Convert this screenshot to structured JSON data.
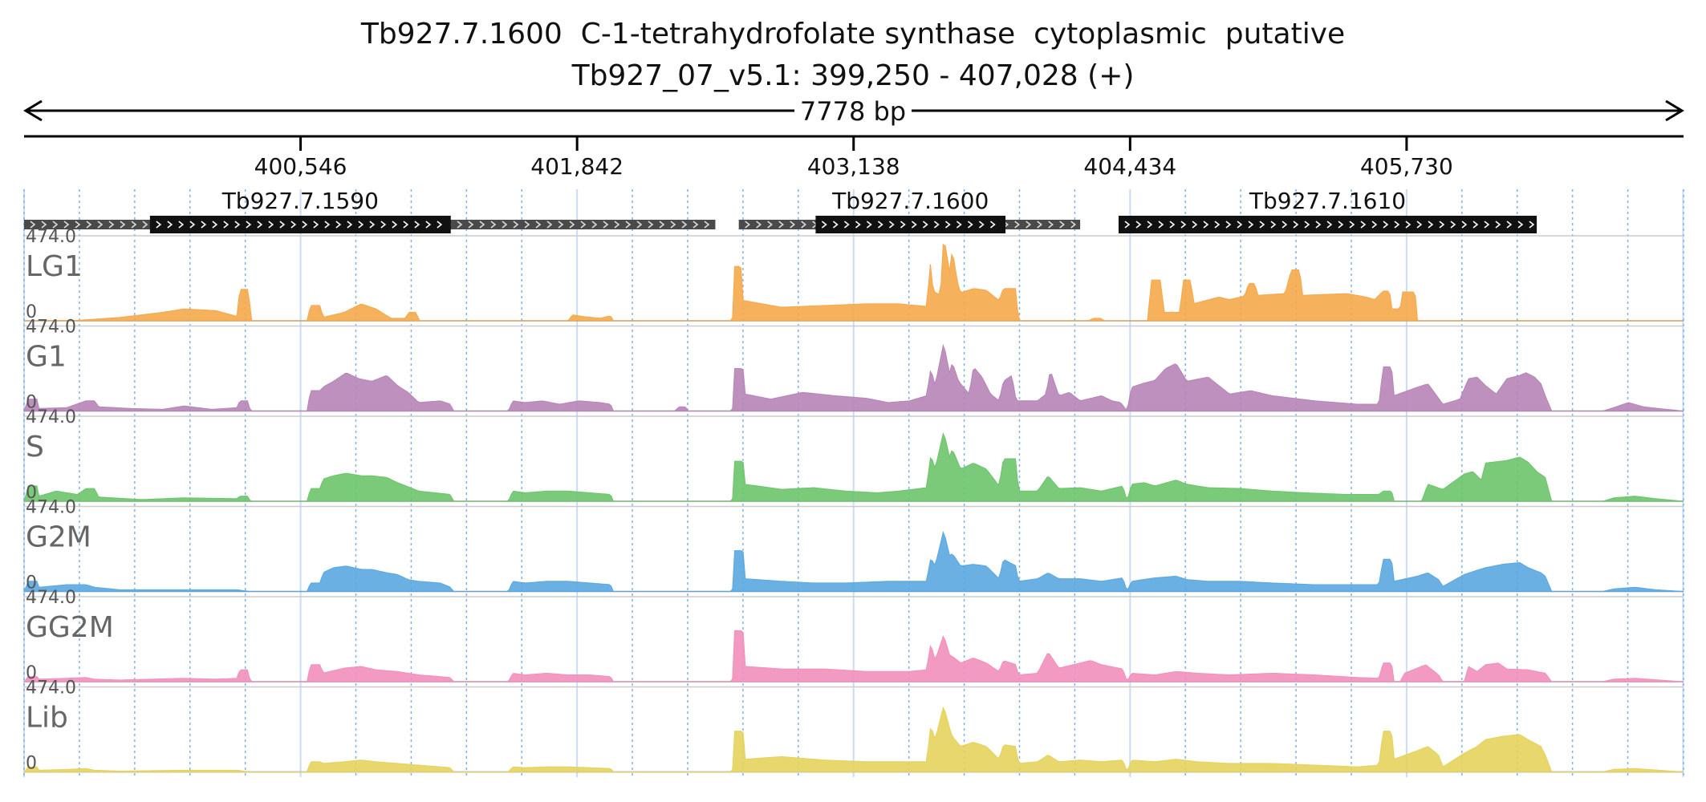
{
  "header": {
    "title": "Tb927.7.1600  C-1-tetrahydrofolate synthase  cytoplasmic  putative",
    "subtitle": "Tb927_07_v5.1: 399,250 - 407,028 (+)",
    "span_label": "7778 bp"
  },
  "chart_data": {
    "type": "area",
    "x_range": [
      399250,
      407028
    ],
    "x_ticks": [
      {
        "value": 400546,
        "label": "400,546"
      },
      {
        "value": 401842,
        "label": "401,842"
      },
      {
        "value": 403138,
        "label": "403,138"
      },
      {
        "value": 404434,
        "label": "404,434"
      },
      {
        "value": 405730,
        "label": "405,730"
      }
    ],
    "genes": [
      {
        "name": "Tb927.7.1590",
        "start": 399250,
        "end": 402490,
        "cds_start": 399840,
        "cds_end": 401250
      },
      {
        "name": "Tb927.7.1600",
        "start": 402600,
        "end": 404200,
        "cds_start": 402960,
        "cds_end": 403850
      },
      {
        "name": "Tb927.7.1610",
        "start": 404380,
        "end": 406340,
        "cds_start": 404380,
        "cds_end": 406340
      }
    ],
    "y_range": [
      0,
      474.0
    ],
    "y_max_label": "474.0",
    "y_min_label": "0",
    "tracks": [
      {
        "name": "LG1",
        "color": "#f5a84a"
      },
      {
        "name": "G1",
        "color": "#b784b7"
      },
      {
        "name": "S",
        "color": "#6cc46c"
      },
      {
        "name": "G2M",
        "color": "#5aa7e0"
      },
      {
        "name": "GG2M",
        "color": "#f28fbb"
      },
      {
        "name": "Lib",
        "color": "#e4d35c"
      }
    ]
  }
}
